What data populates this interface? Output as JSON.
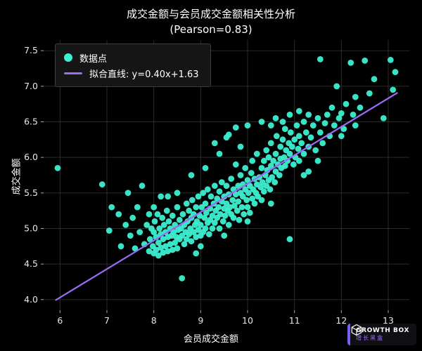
{
  "title_line1": "成交金额与会员成交金额相关性分析",
  "title_line2": "(Pearson=0.83)",
  "legend": {
    "point_label": "数据点",
    "line_label": "拟合直线: y=0.40x+1.63"
  },
  "colors": {
    "background": "#000000",
    "point": "#3CEFD0",
    "line": "#9B6CF6",
    "grid": "#2b2b2b",
    "tick_text": "#e8e8e8",
    "text": "#ffffff"
  },
  "logo": {
    "brand": "GROWTH BOX",
    "subtitle": "增长黑盒",
    "cube_icon": "cube-outline"
  },
  "chart_data": {
    "type": "scatter",
    "title": "成交金额与会员成交金额相关性分析 (Pearson=0.83)",
    "xlabel": "会员成交金额",
    "ylabel": "成交金额",
    "xlim": [
      5.65,
      13.45
    ],
    "ylim": [
      3.85,
      7.65
    ],
    "x_ticks": [
      6,
      7,
      8,
      9,
      10,
      11,
      12,
      13
    ],
    "y_ticks": [
      4.0,
      4.5,
      5.0,
      5.5,
      6.0,
      6.5,
      7.0,
      7.5
    ],
    "grid": true,
    "legend_position": "upper left",
    "pearson": 0.83,
    "fit_line": {
      "slope": 0.4,
      "intercept": 1.63,
      "x_start": 5.9,
      "x_end": 13.2,
      "label": "拟合直线: y=0.40x+1.63"
    },
    "points": [
      [
        5.95,
        5.85
      ],
      [
        6.9,
        5.62
      ],
      [
        7.05,
        4.97
      ],
      [
        7.1,
        5.3
      ],
      [
        7.25,
        5.2
      ],
      [
        7.3,
        4.75
      ],
      [
        7.4,
        5.05
      ],
      [
        7.45,
        5.5
      ],
      [
        7.5,
        4.9
      ],
      [
        7.55,
        5.15
      ],
      [
        7.6,
        4.72
      ],
      [
        7.65,
        5.3
      ],
      [
        7.7,
        4.95
      ],
      [
        7.75,
        5.6
      ],
      [
        7.8,
        4.78
      ],
      [
        7.85,
        5.05
      ],
      [
        7.9,
        5.2
      ],
      [
        8.0,
        5.3
      ],
      [
        7.9,
        4.68
      ],
      [
        7.92,
        4.85
      ],
      [
        7.95,
        5.0
      ],
      [
        7.98,
        4.75
      ],
      [
        8.0,
        4.65
      ],
      [
        8.0,
        4.95
      ],
      [
        8.02,
        5.1
      ],
      [
        8.05,
        4.7
      ],
      [
        8.05,
        4.88
      ],
      [
        8.08,
        5.2
      ],
      [
        8.1,
        4.62
      ],
      [
        8.1,
        4.8
      ],
      [
        8.12,
        5.0
      ],
      [
        8.15,
        4.73
      ],
      [
        8.15,
        4.92
      ],
      [
        8.15,
        5.45
      ],
      [
        8.18,
        5.15
      ],
      [
        8.2,
        4.66
      ],
      [
        8.2,
        4.85
      ],
      [
        8.22,
        5.05
      ],
      [
        8.25,
        4.75
      ],
      [
        8.25,
        4.95
      ],
      [
        8.28,
        5.25
      ],
      [
        8.3,
        4.68
      ],
      [
        8.3,
        4.88
      ],
      [
        8.3,
        5.45
      ],
      [
        8.32,
        5.1
      ],
      [
        8.35,
        4.78
      ],
      [
        8.35,
        5.0
      ],
      [
        8.38,
        4.9
      ],
      [
        8.4,
        4.7
      ],
      [
        8.4,
        5.18
      ],
      [
        8.42,
        4.95
      ],
      [
        8.45,
        4.8
      ],
      [
        8.45,
        5.05
      ],
      [
        8.48,
        4.88
      ],
      [
        8.5,
        4.72
      ],
      [
        8.5,
        5.3
      ],
      [
        8.5,
        5.5
      ],
      [
        8.52,
        4.98
      ],
      [
        8.55,
        4.85
      ],
      [
        8.55,
        5.12
      ],
      [
        8.58,
        5.0
      ],
      [
        8.6,
        4.3
      ],
      [
        8.6,
        4.9
      ],
      [
        8.62,
        5.2
      ],
      [
        8.65,
        4.78
      ],
      [
        8.65,
        5.05
      ],
      [
        8.68,
        4.95
      ],
      [
        8.7,
        5.35
      ],
      [
        8.7,
        4.85
      ],
      [
        8.72,
        5.1
      ],
      [
        8.75,
        4.92
      ],
      [
        8.75,
        5.25
      ],
      [
        8.78,
        5.0
      ],
      [
        8.8,
        4.82
      ],
      [
        8.8,
        5.15
      ],
      [
        8.8,
        5.75
      ],
      [
        8.82,
        5.4
      ],
      [
        8.85,
        4.95
      ],
      [
        8.85,
        5.2
      ],
      [
        8.88,
        5.05
      ],
      [
        8.9,
        4.65
      ],
      [
        8.9,
        4.88
      ],
      [
        8.9,
        5.3
      ],
      [
        8.92,
        5.1
      ],
      [
        8.95,
        4.98
      ],
      [
        8.95,
        5.45
      ],
      [
        8.98,
        5.18
      ],
      [
        9.0,
        4.75
      ],
      [
        9.0,
        4.9
      ],
      [
        9.0,
        5.05
      ],
      [
        9.02,
        5.3
      ],
      [
        9.05,
        5.5
      ],
      [
        9.05,
        4.95
      ],
      [
        9.08,
        5.15
      ],
      [
        9.1,
        5.0
      ],
      [
        9.1,
        5.35
      ],
      [
        9.1,
        5.85
      ],
      [
        9.12,
        5.22
      ],
      [
        9.15,
        5.08
      ],
      [
        9.15,
        5.55
      ],
      [
        9.18,
        4.92
      ],
      [
        9.2,
        5.28
      ],
      [
        9.2,
        5.12
      ],
      [
        9.22,
        5.45
      ],
      [
        9.25,
        5.0
      ],
      [
        9.25,
        5.18
      ],
      [
        9.28,
        5.35
      ],
      [
        9.3,
        5.6
      ],
      [
        9.3,
        5.08
      ],
      [
        9.3,
        6.2
      ],
      [
        9.32,
        5.25
      ],
      [
        9.35,
        5.15
      ],
      [
        9.35,
        5.42
      ],
      [
        9.38,
        5.3
      ],
      [
        9.4,
        5.0
      ],
      [
        9.4,
        5.52
      ],
      [
        9.4,
        6.05
      ],
      [
        9.42,
        5.2
      ],
      [
        9.45,
        5.38
      ],
      [
        9.45,
        5.65
      ],
      [
        9.48,
        5.1
      ],
      [
        9.5,
        4.9
      ],
      [
        9.5,
        5.28
      ],
      [
        9.5,
        5.45
      ],
      [
        9.52,
        5.18
      ],
      [
        9.55,
        5.35
      ],
      [
        9.55,
        5.6
      ],
      [
        9.55,
        6.28
      ],
      [
        9.58,
        5.25
      ],
      [
        9.6,
        5.05
      ],
      [
        9.6,
        5.48
      ],
      [
        9.6,
        6.32
      ],
      [
        9.62,
        5.3
      ],
      [
        9.65,
        5.7
      ],
      [
        9.65,
        5.2
      ],
      [
        9.68,
        5.4
      ],
      [
        9.7,
        5.15
      ],
      [
        9.7,
        5.55
      ],
      [
        9.72,
        5.32
      ],
      [
        9.75,
        5.48
      ],
      [
        9.75,
        5.9
      ],
      [
        9.75,
        6.42
      ],
      [
        9.78,
        5.25
      ],
      [
        9.8,
        5.6
      ],
      [
        9.8,
        5.38
      ],
      [
        9.82,
        5.12
      ],
      [
        9.85,
        5.5
      ],
      [
        9.85,
        5.75
      ],
      [
        9.85,
        6.15
      ],
      [
        9.88,
        5.3
      ],
      [
        9.9,
        5.45
      ],
      [
        9.9,
        5.62
      ],
      [
        9.92,
        5.2
      ],
      [
        9.95,
        5.55
      ],
      [
        9.95,
        5.85
      ],
      [
        9.98,
        5.4
      ],
      [
        10.0,
        5.1
      ],
      [
        10.0,
        5.3
      ],
      [
        10.0,
        5.68
      ],
      [
        10.0,
        6.45
      ],
      [
        10.02,
        5.5
      ],
      [
        10.05,
        5.22
      ],
      [
        10.05,
        5.6
      ],
      [
        10.08,
        5.78
      ],
      [
        10.1,
        5.42
      ],
      [
        10.1,
        5.95
      ],
      [
        10.12,
        5.55
      ],
      [
        10.15,
        5.35
      ],
      [
        10.15,
        5.7
      ],
      [
        10.18,
        5.5
      ],
      [
        10.2,
        5.62
      ],
      [
        10.2,
        6.05
      ],
      [
        10.22,
        5.45
      ],
      [
        10.25,
        5.72
      ],
      [
        10.28,
        5.58
      ],
      [
        10.3,
        5.4
      ],
      [
        10.3,
        5.85
      ],
      [
        10.3,
        6.5
      ],
      [
        10.32,
        5.65
      ],
      [
        10.35,
        5.95
      ],
      [
        10.35,
        5.52
      ],
      [
        10.38,
        5.75
      ],
      [
        10.4,
        5.6
      ],
      [
        10.4,
        6.1
      ],
      [
        10.42,
        5.82
      ],
      [
        10.45,
        5.68
      ],
      [
        10.45,
        6.0
      ],
      [
        10.48,
        5.55
      ],
      [
        10.5,
        5.35
      ],
      [
        10.5,
        5.88
      ],
      [
        10.5,
        6.2
      ],
      [
        10.5,
        6.45
      ],
      [
        10.52,
        5.72
      ],
      [
        10.55,
        5.95
      ],
      [
        10.58,
        5.65
      ],
      [
        10.6,
        6.05
      ],
      [
        10.6,
        5.8
      ],
      [
        10.6,
        6.55
      ],
      [
        10.62,
        6.3
      ],
      [
        10.65,
        5.9
      ],
      [
        10.68,
        5.75
      ],
      [
        10.7,
        6.15
      ],
      [
        10.7,
        5.98
      ],
      [
        10.72,
        5.85
      ],
      [
        10.75,
        6.25
      ],
      [
        10.75,
        6.5
      ],
      [
        10.78,
        6.0
      ],
      [
        10.8,
        5.88
      ],
      [
        10.8,
        6.4
      ],
      [
        10.82,
        6.1
      ],
      [
        10.85,
        5.95
      ],
      [
        10.88,
        6.2
      ],
      [
        10.9,
        4.85
      ],
      [
        10.9,
        6.05
      ],
      [
        10.9,
        6.6
      ],
      [
        10.92,
        6.35
      ],
      [
        10.95,
        6.15
      ],
      [
        10.98,
        5.9
      ],
      [
        11.0,
        6.25
      ],
      [
        11.02,
        6.0
      ],
      [
        11.05,
        6.45
      ],
      [
        11.08,
        6.12
      ],
      [
        11.1,
        5.95
      ],
      [
        11.1,
        6.3
      ],
      [
        11.1,
        6.65
      ],
      [
        11.15,
        6.2
      ],
      [
        11.2,
        5.75
      ],
      [
        11.2,
        6.05
      ],
      [
        11.2,
        6.5
      ],
      [
        11.25,
        6.35
      ],
      [
        11.3,
        5.8
      ],
      [
        11.3,
        6.15
      ],
      [
        11.3,
        6.6
      ],
      [
        11.35,
        6.28
      ],
      [
        11.4,
        6.45
      ],
      [
        11.45,
        6.1
      ],
      [
        11.5,
        5.95
      ],
      [
        11.5,
        6.55
      ],
      [
        11.55,
        6.35
      ],
      [
        11.55,
        7.38
      ],
      [
        11.6,
        6.2
      ],
      [
        11.65,
        6.48
      ],
      [
        11.7,
        6.6
      ],
      [
        11.75,
        6.3
      ],
      [
        11.8,
        6.7
      ],
      [
        11.85,
        6.45
      ],
      [
        11.9,
        7.0
      ],
      [
        11.95,
        6.55
      ],
      [
        12.0,
        6.3
      ],
      [
        12.0,
        6.62
      ],
      [
        12.05,
        6.4
      ],
      [
        12.1,
        6.75
      ],
      [
        12.2,
        7.33
      ],
      [
        12.25,
        6.6
      ],
      [
        12.3,
        6.45
      ],
      [
        12.3,
        6.85
      ],
      [
        12.4,
        6.7
      ],
      [
        12.5,
        7.36
      ],
      [
        12.6,
        6.9
      ],
      [
        12.7,
        7.1
      ],
      [
        12.9,
        6.55
      ],
      [
        13.05,
        7.37
      ],
      [
        13.1,
        6.95
      ],
      [
        13.15,
        7.2
      ]
    ]
  }
}
